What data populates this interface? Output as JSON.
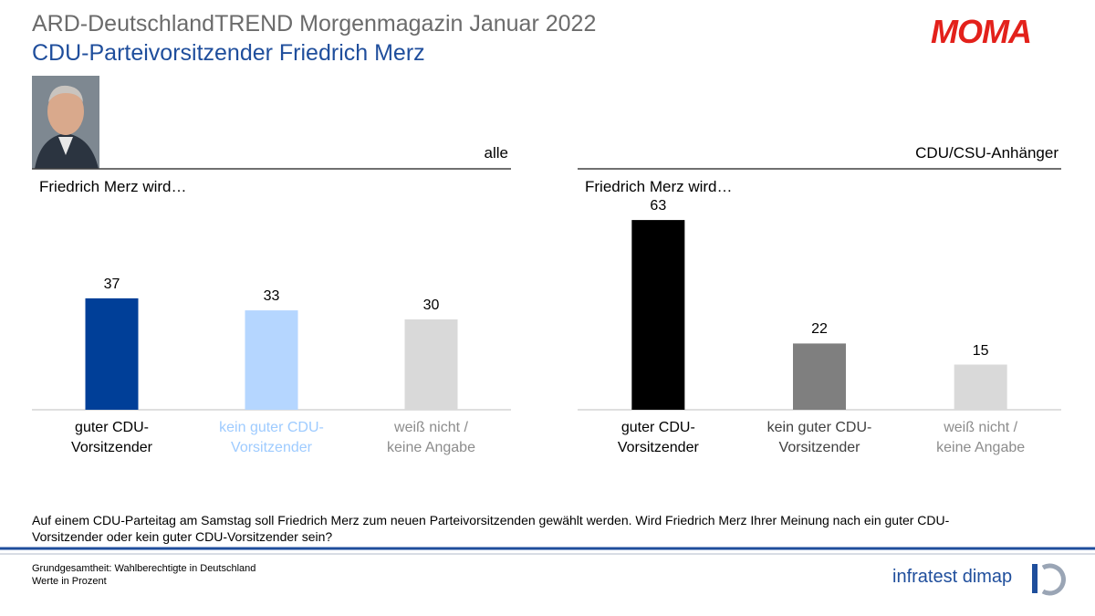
{
  "header": {
    "title": "ARD-DeutschlandTREND Morgenmagazin Januar 2022",
    "subtitle": "CDU-Parteivorsitzender Friedrich Merz",
    "logo": "MOMA"
  },
  "chart_data": [
    {
      "type": "bar",
      "title": "alle",
      "subtitle": "Friedrich Merz wird…",
      "categories": [
        "guter CDU-\nVorsitzender",
        "kein guter CDU-\nVorsitzender",
        "weiß nicht /\nkeine Angabe"
      ],
      "values": [
        37,
        33,
        30
      ],
      "colors": [
        "#003f98",
        "#b5d6ff",
        "#d9d9d9"
      ],
      "label_colors": [
        "#000000",
        "#9ecbff",
        "#8c8c8c"
      ]
    },
    {
      "type": "bar",
      "title": "CDU/CSU-Anhänger",
      "subtitle": "Friedrich Merz wird…",
      "categories": [
        "guter CDU-\nVorsitzender",
        "kein guter CDU-\nVorsitzender",
        "weiß nicht /\nkeine Angabe"
      ],
      "values": [
        63,
        22,
        15
      ],
      "colors": [
        "#000000",
        "#7f7f7f",
        "#d9d9d9"
      ],
      "label_colors": [
        "#000000",
        "#404040",
        "#8c8c8c"
      ]
    }
  ],
  "question": "Auf einem CDU-Parteitag am Samstag soll Friedrich Merz zum neuen Parteivorsitzenden gewählt werden. Wird Friedrich Merz Ihrer Meinung nach ein guter CDU-Vorsitzender oder kein guter CDU-Vorsitzender sein?",
  "footer": {
    "base": "Grundgesamtheit: Wahlberechtigte in Deutschland",
    "unit": "Werte in Prozent",
    "brand": "infratest dimap"
  }
}
